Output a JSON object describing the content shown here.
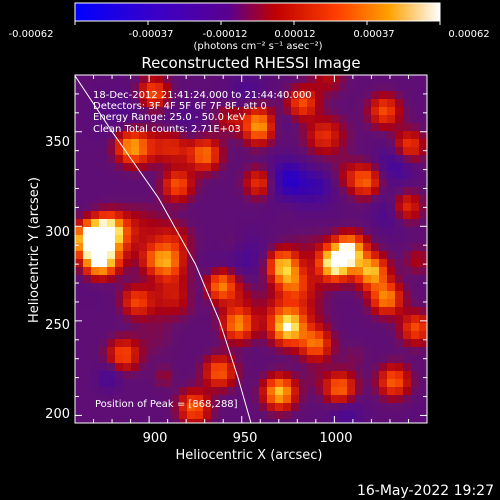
{
  "colorbar": {
    "ticks": [
      "-0.00062",
      "-0.00037",
      "-0.00012",
      "0.00012",
      "0.00037",
      "0.00062"
    ],
    "unit_label": "(photons cm⁻² s⁻¹ asec⁻²)"
  },
  "chart_data": {
    "type": "heatmap",
    "title": "Reconstructed RHESSI Image",
    "xlabel": "Heliocentric X (arcsec)",
    "ylabel": "Heliocentric Y (arcsec)",
    "xlim": [
      860,
      1050
    ],
    "ylim": [
      196,
      380
    ],
    "x_ticks": [
      900,
      950,
      1000
    ],
    "y_ticks": [
      200,
      250,
      300,
      350
    ],
    "color_range": [
      -0.00062,
      0.00062
    ],
    "colormap": "blue-purple-red-orange-yellow-white",
    "annotations": [
      "18-Dec-2012 21:41:24.000 to 21:44:40.000",
      "Detectors: 3F 4F 5F 6F 7F 8F, att 0",
      "Energy Range: 25.0 - 50.0 keV",
      "Clean    Total counts: 2.71E+03"
    ],
    "peak_label": "Position of Peak = [868,288]",
    "peak": [
      868,
      288
    ],
    "limb_curve": [
      [
        857,
        384
      ],
      [
        880,
        350
      ],
      [
        905,
        315
      ],
      [
        925,
        280
      ],
      [
        938,
        250
      ],
      [
        948,
        220
      ],
      [
        955,
        196
      ]
    ],
    "hotspots": [
      [
        868,
        293,
        1.0
      ],
      [
        873,
        282,
        0.9
      ],
      [
        877,
        297,
        0.8
      ],
      [
        1000,
        280,
        0.9
      ],
      [
        1008,
        287,
        0.8
      ],
      [
        1020,
        276,
        0.7
      ],
      [
        1028,
        262,
        0.6
      ],
      [
        972,
        279,
        0.7
      ],
      [
        938,
        269,
        0.6
      ],
      [
        930,
        338,
        0.55
      ],
      [
        915,
        322,
        0.5
      ],
      [
        890,
        342,
        0.55
      ],
      [
        960,
        323,
        0.5
      ],
      [
        1017,
        324,
        0.5
      ],
      [
        1040,
        342,
        0.45
      ],
      [
        1038,
        310,
        0.5
      ],
      [
        948,
        248,
        0.6
      ],
      [
        975,
        246,
        0.65
      ],
      [
        990,
        238,
        0.55
      ],
      [
        938,
        223,
        0.5
      ],
      [
        1003,
        214,
        0.55
      ],
      [
        1032,
        218,
        0.5
      ],
      [
        970,
        212,
        0.6
      ],
      [
        893,
        260,
        0.45
      ],
      [
        910,
        281,
        0.5
      ],
      [
        958,
        356,
        0.45
      ],
      [
        1027,
        361,
        0.45
      ],
      [
        983,
        365,
        0.5
      ],
      [
        902,
        370,
        0.5
      ],
      [
        886,
        232,
        0.45
      ],
      [
        1044,
        246,
        0.45
      ],
      [
        924,
        205,
        0.45
      ]
    ]
  },
  "footer_date": "16-May-2022 19:27"
}
